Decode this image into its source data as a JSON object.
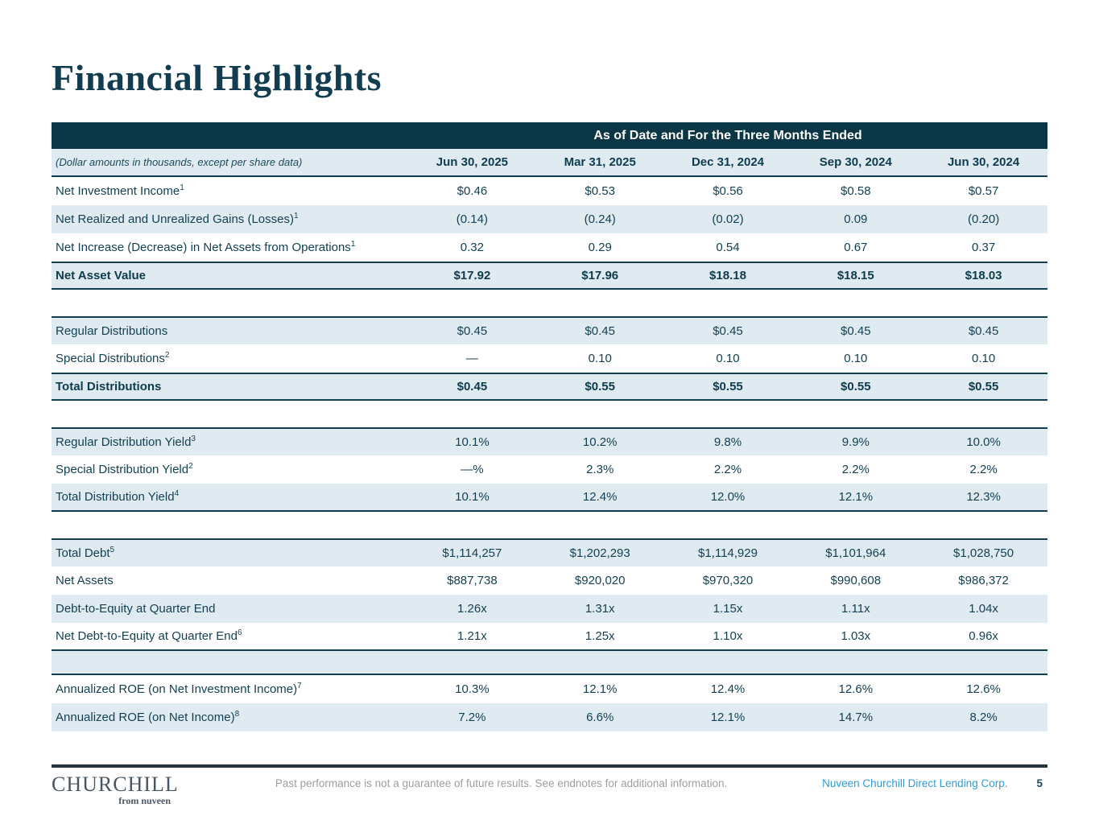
{
  "page": {
    "title": "Financial Highlights",
    "footer": {
      "disclaimer": "Past performance is not a guarantee of future results. See endnotes for additional information.",
      "entity": "Nuveen Churchill Direct Lending Corp.",
      "page_number": "5",
      "logo_main": "CHURCHILL",
      "logo_sub": "from nuveen"
    }
  },
  "colors": {
    "banner_dark_teal": "#0B3645",
    "row_light_blue": "#DFEBF1",
    "table_border": "#123F50",
    "table_text": "#123F53",
    "title_text": "#123C50",
    "footer_divider": "#22333E",
    "entity_link_blue": "#2F9CD5",
    "disclaimer_gray": "#9E9E9E",
    "logo_gray": "#4A5763",
    "page_number_navy": "#1A4B68"
  },
  "table": {
    "header_banner": "As of Date and For the Three Months Ended",
    "note": "(Dollar amounts in thousands, except per share data)",
    "columns": [
      "Jun 30, 2025",
      "Mar 31, 2025",
      "Dec 31, 2024",
      "Sep 30, 2024",
      "Jun 30, 2024"
    ],
    "sections": [
      {
        "rows": [
          {
            "label": "Net Investment Income",
            "sup": "1",
            "shade": "white",
            "values": [
              "$0.46",
              "$0.53",
              "$0.56",
              "$0.58",
              "$0.57"
            ]
          },
          {
            "label": "Net Realized and Unrealized Gains (Losses)",
            "sup": "1",
            "shade": "blue",
            "values": [
              "(0.14)",
              "(0.24)",
              "(0.02)",
              "0.09",
              "(0.20)"
            ]
          },
          {
            "label": "Net Increase (Decrease) in Net Assets from Operations",
            "sup": "1",
            "shade": "white",
            "values": [
              "0.32",
              "0.29",
              "0.54",
              "0.67",
              "0.37"
            ]
          },
          {
            "label": "Net Asset Value",
            "shade": "blue",
            "bold": true,
            "border_top": true,
            "border_bottom": true,
            "values": [
              "$17.92",
              "$17.96",
              "$18.18",
              "$18.15",
              "$18.03"
            ]
          }
        ]
      },
      {
        "rows": [
          {
            "label": "Regular Distributions",
            "shade": "blue",
            "border_top": true,
            "values": [
              "$0.45",
              "$0.45",
              "$0.45",
              "$0.45",
              "$0.45"
            ]
          },
          {
            "label": "Special Distributions",
            "sup": "2",
            "shade": "white",
            "values": [
              "—",
              "0.10",
              "0.10",
              "0.10",
              "0.10"
            ]
          },
          {
            "label": "Total Distributions",
            "shade": "blue",
            "bold": true,
            "border_top": true,
            "border_bottom": true,
            "values": [
              "$0.45",
              "$0.55",
              "$0.55",
              "$0.55",
              "$0.55"
            ]
          }
        ]
      },
      {
        "rows": [
          {
            "label": "Regular Distribution Yield",
            "sup": "3",
            "shade": "blue",
            "border_top": true,
            "values": [
              "10.1%",
              "10.2%",
              "9.8%",
              "9.9%",
              "10.0%"
            ]
          },
          {
            "label": "Special Distribution Yield",
            "sup": "2",
            "shade": "white",
            "values": [
              "—%",
              "2.3%",
              "2.2%",
              "2.2%",
              "2.2%"
            ]
          },
          {
            "label": "Total Distribution Yield",
            "sup": "4",
            "shade": "blue",
            "border_bottom": true,
            "values": [
              "10.1%",
              "12.4%",
              "12.0%",
              "12.1%",
              "12.3%"
            ]
          }
        ]
      },
      {
        "rows": [
          {
            "label": "Total Debt",
            "sup": "5",
            "shade": "blue",
            "border_top": true,
            "values": [
              "$1,114,257",
              "$1,202,293",
              "$1,114,929",
              "$1,101,964",
              "$1,028,750"
            ]
          },
          {
            "label": "Net Assets",
            "shade": "white",
            "values": [
              "$887,738",
              "$920,020",
              "$970,320",
              "$990,608",
              "$986,372"
            ]
          },
          {
            "label": "Debt-to-Equity at Quarter End",
            "shade": "blue",
            "values": [
              "1.26x",
              "1.31x",
              "1.15x",
              "1.11x",
              "1.04x"
            ]
          },
          {
            "label": "Net Debt-to-Equity at Quarter End",
            "sup": "6",
            "shade": "white",
            "border_bottom": true,
            "values": [
              "1.21x",
              "1.25x",
              "1.10x",
              "1.03x",
              "0.96x"
            ]
          },
          {
            "type": "spacer",
            "shade": "blue",
            "border_bottom": true
          },
          {
            "label": "Annualized ROE (on Net Investment Income)",
            "sup": "7",
            "shade": "white",
            "values": [
              "10.3%",
              "12.1%",
              "12.4%",
              "12.6%",
              "12.6%"
            ]
          },
          {
            "label": "Annualized ROE (on Net Income)",
            "sup": "8",
            "shade": "blue",
            "values": [
              "7.2%",
              "6.6%",
              "12.1%",
              "14.7%",
              "8.2%"
            ]
          }
        ]
      }
    ]
  }
}
